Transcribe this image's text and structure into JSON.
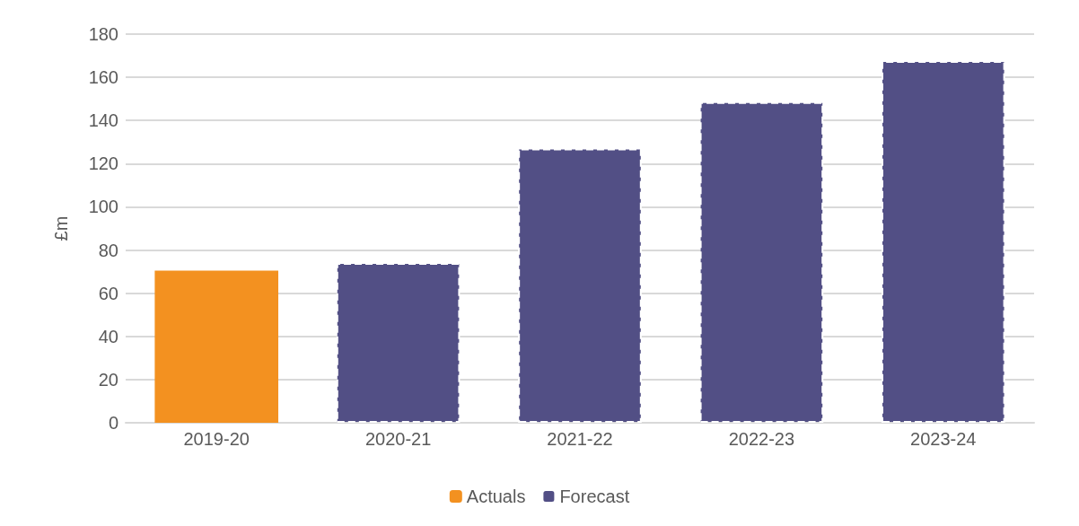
{
  "chart_data": {
    "type": "bar",
    "ylabel": "£m",
    "categories": [
      "2019-20",
      "2020-21",
      "2021-22",
      "2022-23",
      "2023-24"
    ],
    "series": [
      {
        "name": "Actuals",
        "color": "#f39120",
        "values": [
          70.5,
          null,
          null,
          null,
          null
        ]
      },
      {
        "name": "Forecast",
        "color": "#524f85",
        "line_style": "dashed",
        "values": [
          null,
          74,
          127,
          148.5,
          167.5
        ]
      }
    ],
    "ylim": [
      0,
      180
    ],
    "yticks": [
      0,
      20,
      40,
      60,
      80,
      100,
      120,
      140,
      160,
      180
    ],
    "grid": "y",
    "legend": "bottom"
  }
}
